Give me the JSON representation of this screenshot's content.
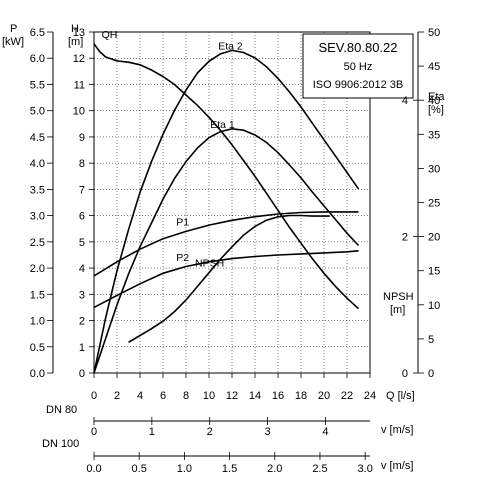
{
  "chart_data": {
    "type": "line",
    "info_box": [
      "SEV.80.80.22",
      "50 Hz",
      "ISO 9906:2012 3B"
    ],
    "axes": {
      "x": {
        "label": "Q [l/s]",
        "range": [
          0,
          24
        ],
        "ticks": [
          "0",
          "2",
          "4",
          "6",
          "8",
          "10",
          "12",
          "14",
          "16",
          "18",
          "20",
          "22",
          "24"
        ]
      },
      "p": {
        "label_top": "P",
        "label_unit": "[kW]",
        "range": [
          0,
          6.5
        ],
        "ticks": [
          "0.0",
          "0.5",
          "1.0",
          "1.5",
          "2.0",
          "2.5",
          "3.0",
          "3.5",
          "4.0",
          "4.5",
          "5.0",
          "5.5",
          "6.0",
          "6.5"
        ]
      },
      "h": {
        "label_top": "H",
        "label_unit": "[m]",
        "range": [
          0,
          13
        ],
        "ticks": [
          "0",
          "1",
          "2",
          "3",
          "4",
          "5",
          "6",
          "7",
          "8",
          "9",
          "10",
          "11",
          "12",
          "13"
        ]
      },
      "eta": {
        "label_top": "Eta",
        "label_unit": "[%]",
        "range": [
          0,
          50
        ],
        "ticks": [
          "0",
          "5",
          "10",
          "15",
          "20",
          "25",
          "30",
          "35",
          "40",
          "45",
          "50"
        ]
      },
      "npsh": {
        "label_top": "NPSH",
        "label_unit": "[m]",
        "range": [
          0,
          5
        ],
        "ticks": [
          "0",
          "2",
          "4"
        ]
      },
      "v80": {
        "label": "v [m/s]",
        "dn_label": "DN 80",
        "ticks": [
          {
            "t": "0",
            "v": 0
          },
          {
            "t": "1",
            "v": 1
          },
          {
            "t": "2",
            "v": 2
          },
          {
            "t": "3",
            "v": 3
          },
          {
            "t": "4",
            "v": 4
          }
        ],
        "per_unit_q": 5.03
      },
      "v100": {
        "label": "v [m/s]",
        "dn_label": "DN 100",
        "ticks": [
          {
            "t": "0.0",
            "v": 0
          },
          {
            "t": "0.5",
            "v": 0.5
          },
          {
            "t": "1.0",
            "v": 1.0
          },
          {
            "t": "1.5",
            "v": 1.5
          },
          {
            "t": "2.0",
            "v": 2.0
          },
          {
            "t": "2.5",
            "v": 2.5
          },
          {
            "t": "3.0",
            "v": 3.0
          }
        ],
        "per_unit_q": 7.86
      }
    },
    "series": [
      {
        "name": "QH",
        "axis": "h",
        "x": [
          0,
          0.5,
          1,
          2,
          3,
          4,
          5,
          6,
          7,
          8,
          9,
          10,
          11,
          12,
          13,
          14,
          15,
          16,
          17,
          18,
          19,
          20,
          21,
          22,
          23
        ],
        "y": [
          12.55,
          12.25,
          12.05,
          11.9,
          11.85,
          11.75,
          11.55,
          11.3,
          11.0,
          10.6,
          10.2,
          9.75,
          9.25,
          8.7,
          8.1,
          7.5,
          6.85,
          6.2,
          5.55,
          4.95,
          4.35,
          3.8,
          3.3,
          2.85,
          2.45
        ]
      },
      {
        "name": "Eta 2",
        "axis": "eta",
        "x": [
          0,
          1,
          2,
          3,
          4,
          5,
          6,
          7,
          8,
          9,
          10,
          11,
          12,
          13,
          14,
          15,
          16,
          17,
          18,
          19,
          20,
          21,
          22,
          23
        ],
        "y": [
          0,
          8,
          15,
          21,
          26.5,
          31,
          35,
          38.5,
          41.5,
          44,
          45.7,
          46.8,
          47.3,
          47.0,
          46.2,
          44.9,
          43.2,
          41.2,
          39.0,
          36.6,
          34.2,
          31.8,
          29.4,
          27.0
        ]
      },
      {
        "name": "Eta 1",
        "axis": "eta",
        "x": [
          0,
          1,
          2,
          3,
          4,
          5,
          6,
          7,
          8,
          9,
          10,
          11,
          12,
          13,
          14,
          15,
          16,
          17,
          18,
          19,
          20,
          21,
          22,
          23
        ],
        "y": [
          0,
          5,
          10,
          14.5,
          18.5,
          22,
          25.5,
          28.5,
          31,
          33,
          34.5,
          35.4,
          35.8,
          35.6,
          34.9,
          33.8,
          32.3,
          30.5,
          28.6,
          26.5,
          24.5,
          22.5,
          20.5,
          18.7
        ]
      },
      {
        "name": "P1",
        "axis": "p",
        "x": [
          0,
          2,
          4,
          6,
          8,
          10,
          12,
          14,
          16,
          18,
          20,
          22,
          23
        ],
        "y": [
          1.85,
          2.12,
          2.36,
          2.56,
          2.7,
          2.82,
          2.91,
          2.98,
          3.03,
          3.06,
          3.07,
          3.07,
          3.07
        ]
      },
      {
        "name": "P2",
        "axis": "p",
        "x": [
          0,
          2,
          4,
          6,
          8,
          10,
          12,
          14,
          16,
          18,
          20,
          22,
          23
        ],
        "y": [
          1.25,
          1.48,
          1.7,
          1.9,
          2.03,
          2.12,
          2.18,
          2.22,
          2.25,
          2.27,
          2.29,
          2.31,
          2.33
        ]
      },
      {
        "name": "NPSH",
        "axis": "npsh",
        "x": [
          3,
          4,
          5,
          6,
          7,
          8,
          9,
          10,
          11,
          12,
          13,
          14,
          15,
          16,
          17,
          18,
          19,
          20,
          20.5
        ],
        "y": [
          0.45,
          0.55,
          0.65,
          0.76,
          0.9,
          1.07,
          1.27,
          1.47,
          1.67,
          1.85,
          2.02,
          2.15,
          2.24,
          2.29,
          2.31,
          2.31,
          2.3,
          2.3,
          2.3
        ]
      }
    ]
  }
}
